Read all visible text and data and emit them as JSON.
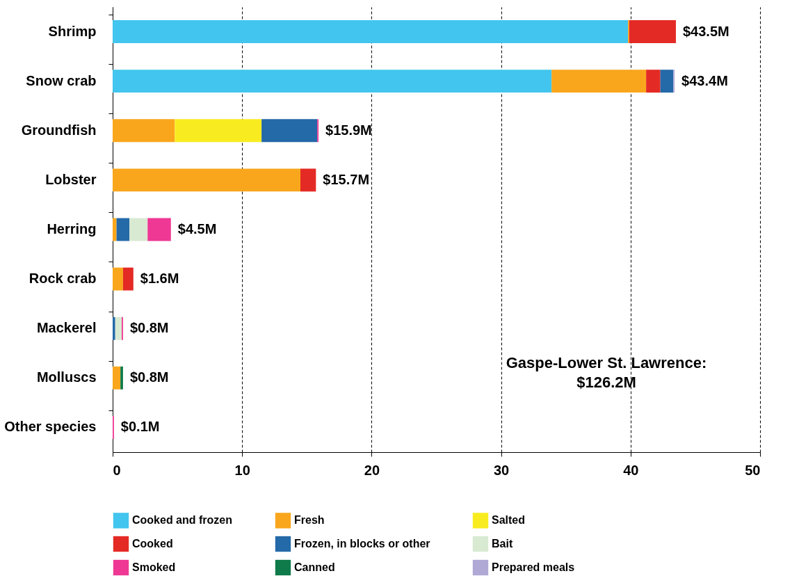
{
  "chart_data": {
    "type": "bar",
    "orientation": "horizontal",
    "stacked": true,
    "categories": [
      "Shrimp",
      "Snow crab",
      "Groundfish",
      "Lobster",
      "Herring",
      "Rock crab",
      "Mackerel",
      "Molluscs",
      "Other species"
    ],
    "series": [
      {
        "name": "Cooked and frozen",
        "color": "#42c5ee",
        "values": [
          39.8,
          33.9,
          null,
          null,
          null,
          null,
          null,
          null,
          null
        ]
      },
      {
        "name": "Fresh",
        "color": "#f9a61c",
        "values": [
          0.1,
          7.3,
          4.8,
          14.5,
          0.3,
          0.8,
          null,
          0.6,
          null
        ]
      },
      {
        "name": "Salted",
        "color": "#f8ec20",
        "values": [
          null,
          null,
          6.7,
          null,
          null,
          null,
          null,
          null,
          null
        ]
      },
      {
        "name": "Cooked",
        "color": "#e42a25",
        "values": [
          3.6,
          1.1,
          null,
          1.2,
          null,
          0.8,
          null,
          null,
          null
        ]
      },
      {
        "name": "Frozen, in blocks or other",
        "color": "#2469a8",
        "values": [
          null,
          1.0,
          4.3,
          null,
          1.0,
          null,
          0.2,
          null,
          null
        ]
      },
      {
        "name": "Bait",
        "color": "#d8ead2",
        "values": [
          null,
          null,
          null,
          null,
          1.4,
          null,
          0.5,
          null,
          null
        ]
      },
      {
        "name": "Smoked",
        "color": "#ee3894",
        "values": [
          null,
          null,
          0.1,
          null,
          1.8,
          null,
          0.1,
          null,
          0.1
        ]
      },
      {
        "name": "Canned",
        "color": "#0f7a4a",
        "values": [
          null,
          null,
          null,
          null,
          null,
          null,
          null,
          0.2,
          null
        ]
      },
      {
        "name": "Prepared meals",
        "color": "#b0a8d5",
        "values": [
          null,
          0.1,
          null,
          null,
          null,
          null,
          null,
          null,
          null
        ]
      }
    ],
    "totals": [
      "$43.5M",
      "$43.4M",
      "$15.9M",
      "$15.7M",
      "$4.5M",
      "$1.6M",
      "$0.8M",
      "$0.8M",
      "$0.1M"
    ],
    "xlim": [
      0,
      50
    ],
    "xticks": [
      0,
      10,
      20,
      30,
      40,
      50
    ],
    "grid": "x",
    "legend": "bottom",
    "annotations": [
      "Gaspe-Lower St. Lawrence:",
      "$126.2M"
    ]
  }
}
